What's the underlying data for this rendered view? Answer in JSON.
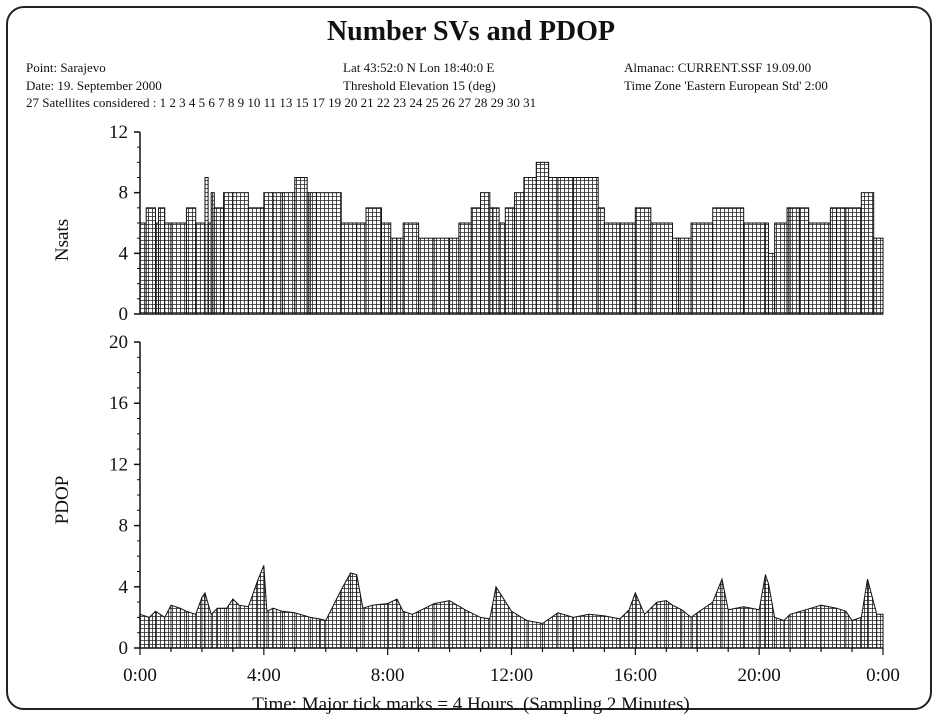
{
  "header": {
    "title": "Number SVs and PDOP",
    "point": "Point: Sarajevo",
    "date": "Date: 19. September 2000",
    "satellites": "27 Satellites considered : 1 2 3 4 5 6 7 8 9 10 11 13 15 17 19 20 21 22 23 24 25 26 27 28 29 30 31",
    "latlon": "Lat 43:52:0 N   Lon 18:40:0 E",
    "threshold": "Threshold Elevation 15 (deg)",
    "almanac": "Almanac: CURRENT.SSF  19.09.00",
    "timezone": "Time Zone 'Eastern European Std'  2:00",
    "xlabel": "Time: Major tick marks = 4 Hours. (Sampling 2 Minutes)"
  },
  "chart_data": [
    {
      "type": "bar",
      "ylabel": "Nsats",
      "ylim": [
        0,
        12
      ],
      "yticks": [
        "0",
        "4",
        "8",
        "12"
      ],
      "xlim_hours": [
        0,
        24
      ],
      "xticks": [
        "0:00",
        "4:00",
        "8:00",
        "12:00",
        "16:00",
        "20:00",
        "0:00"
      ],
      "x_hours": [
        0,
        0.2,
        0.5,
        0.6,
        0.8,
        1,
        1.5,
        1.8,
        2.1,
        2.2,
        2.3,
        2.4,
        2.7,
        3,
        3.5,
        4,
        4.3,
        4.6,
        5,
        5.4,
        5.5,
        5.7,
        6.5,
        7,
        7.3,
        7.8,
        8.1,
        8.3,
        8.5,
        9,
        9.5,
        10,
        10.3,
        10.7,
        11,
        11.3,
        11.4,
        11.6,
        11.8,
        12.1,
        12.4,
        12.8,
        13.2,
        13.5,
        14,
        14.8,
        15,
        15.5,
        16,
        16.5,
        17.2,
        17.4,
        17.8,
        18.5,
        19.5,
        20.2,
        20.3,
        20.5,
        20.9,
        21,
        21.3,
        21.6,
        22.3,
        22.5,
        22.8,
        23.3,
        23.7,
        24
      ],
      "values": [
        6,
        7,
        6,
        7,
        6,
        6,
        7,
        6,
        9,
        6,
        8,
        7,
        8,
        8,
        7,
        8,
        8,
        8,
        9,
        8,
        8,
        8,
        6,
        6,
        7,
        6,
        5,
        5,
        6,
        5,
        5,
        5,
        6,
        7,
        8,
        7,
        7,
        6,
        7,
        8,
        9,
        10,
        9,
        9,
        9,
        7,
        6,
        6,
        7,
        6,
        5,
        5,
        6,
        7,
        6,
        6,
        4,
        6,
        7,
        7,
        7,
        6,
        7,
        7,
        7,
        8,
        5,
        6
      ]
    },
    {
      "type": "area",
      "ylabel": "PDOP",
      "ylim": [
        0,
        20
      ],
      "yticks": [
        "0",
        "4",
        "8",
        "12",
        "16",
        "20"
      ],
      "xlim_hours": [
        0,
        24
      ],
      "xticks": [
        "0:00",
        "4:00",
        "8:00",
        "12:00",
        "16:00",
        "20:00",
        "0:00"
      ],
      "x_hours": [
        0,
        0.3,
        0.5,
        0.8,
        1,
        1.3,
        1.5,
        1.8,
        2,
        2.1,
        2.3,
        2.5,
        2.8,
        3,
        3.2,
        3.5,
        3.8,
        4,
        4.1,
        4.3,
        4.6,
        5,
        5.5,
        5.8,
        6,
        6.5,
        6.8,
        7,
        7.2,
        7.5,
        8,
        8.3,
        8.5,
        8.8,
        9,
        9.5,
        10,
        10.5,
        11,
        11.3,
        11.5,
        12,
        12.5,
        13,
        13.5,
        14,
        14.5,
        15,
        15.5,
        15.8,
        16,
        16.3,
        16.7,
        17,
        17.2,
        17.5,
        17.8,
        18,
        18.5,
        18.8,
        19,
        19.5,
        20,
        20.2,
        20.3,
        20.5,
        20.8,
        21,
        21.5,
        22,
        22.5,
        22.8,
        23,
        23.3,
        23.5,
        23.8,
        24
      ],
      "values": [
        2.2,
        2,
        2.4,
        2,
        2.8,
        2.6,
        2.4,
        2.2,
        3.3,
        3.6,
        2.2,
        2.6,
        2.6,
        3.2,
        2.8,
        2.7,
        4.4,
        5.4,
        2.4,
        2.6,
        2.4,
        2.3,
        2,
        1.9,
        1.8,
        3.8,
        4.9,
        4.8,
        2.6,
        2.8,
        2.9,
        3.2,
        2.4,
        2.2,
        2.4,
        2.9,
        3.1,
        2.5,
        2,
        1.9,
        4,
        2.4,
        1.8,
        1.6,
        2.3,
        2,
        2.2,
        2.1,
        1.9,
        2.5,
        3.6,
        2.2,
        3,
        3.1,
        2.8,
        2.5,
        2,
        2.3,
        3,
        4.5,
        2.5,
        2.7,
        2.5,
        4.8,
        4.2,
        2,
        1.8,
        2.2,
        2.5,
        2.8,
        2.6,
        2.4,
        1.8,
        2,
        4.5,
        2.2,
        2.2
      ]
    }
  ]
}
